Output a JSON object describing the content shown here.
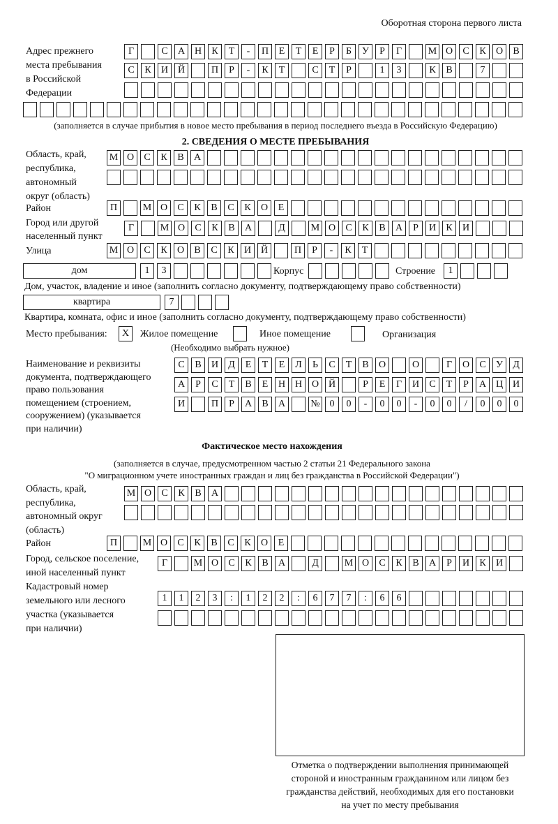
{
  "header": "Оборотная сторона первого листа",
  "prev_address": {
    "label": [
      "Адрес прежнего",
      "места пребывания",
      "в Российской",
      "Федерации"
    ],
    "rows": [
      [
        "Г",
        "",
        "С",
        "А",
        "Н",
        "К",
        "Т",
        "-",
        "П",
        "Е",
        "Т",
        "Е",
        "Р",
        "Б",
        "У",
        "Р",
        "Г",
        "",
        "М",
        "О",
        "С",
        "К",
        "О",
        "В"
      ],
      [
        "С",
        "К",
        "И",
        "Й",
        "",
        "П",
        "Р",
        "-",
        "К",
        "Т",
        "",
        "С",
        "Т",
        "Р",
        "",
        "1",
        "3",
        "",
        "К",
        "В",
        "",
        "7",
        "",
        ""
      ],
      [
        "",
        "",
        "",
        "",
        "",
        "",
        "",
        "",
        "",
        "",
        "",
        "",
        "",
        "",
        "",
        "",
        "",
        "",
        "",
        "",
        "",
        "",
        "",
        ""
      ],
      [
        "",
        "",
        "",
        "",
        "",
        "",
        "",
        "",
        "",
        "",
        "",
        "",
        "",
        "",
        "",
        "",
        "",
        "",
        "",
        "",
        "",
        "",
        "",
        "",
        "",
        "",
        "",
        "",
        "",
        ""
      ]
    ],
    "note": "(заполняется в случае прибытия в новое место пребывания в период последнего въезда в Российскую Федерацию)"
  },
  "section2": {
    "title": "2. СВЕДЕНИЯ О МЕСТЕ ПРЕБЫВАНИЯ",
    "region_label": [
      "Область, край,",
      "республика,",
      "автономный",
      "округ (область)"
    ],
    "region_rows": [
      [
        "М",
        "О",
        "С",
        "К",
        "В",
        "А",
        "",
        "",
        "",
        "",
        "",
        "",
        "",
        "",
        "",
        "",
        "",
        "",
        "",
        "",
        "",
        "",
        "",
        "",
        ""
      ],
      [
        "",
        "",
        "",
        "",
        "",
        "",
        "",
        "",
        "",
        "",
        "",
        "",
        "",
        "",
        "",
        "",
        "",
        "",
        "",
        "",
        "",
        "",
        "",
        "",
        ""
      ]
    ],
    "district_label": "Район",
    "district": [
      "П",
      "",
      "М",
      "О",
      "С",
      "К",
      "В",
      "С",
      "К",
      "О",
      "Е",
      "",
      "",
      "",
      "",
      "",
      "",
      "",
      "",
      "",
      "",
      "",
      "",
      "",
      ""
    ],
    "city_label": [
      "Город или другой",
      "населенный пункт"
    ],
    "city": [
      "Г",
      "",
      "М",
      "О",
      "С",
      "К",
      "В",
      "А",
      "",
      "Д",
      "",
      "М",
      "О",
      "С",
      "К",
      "В",
      "А",
      "Р",
      "И",
      "К",
      "И",
      "",
      "",
      ""
    ],
    "street_label": "Улица",
    "street": [
      "М",
      "О",
      "С",
      "К",
      "О",
      "В",
      "С",
      "К",
      "И",
      "Й",
      "",
      "П",
      "Р",
      "-",
      "К",
      "Т",
      "",
      "",
      "",
      "",
      "",
      "",
      "",
      "",
      ""
    ],
    "house_type": "дом",
    "house": [
      "1",
      "3",
      "",
      "",
      "",
      "",
      "",
      ""
    ],
    "korpus_label": "Корпус",
    "korpus": [
      "",
      "",
      "",
      "",
      ""
    ],
    "stroenie_label": "Строение",
    "stroenie": [
      "1",
      "",
      "",
      ""
    ],
    "house_note": "Дом, участок, владение и иное (заполнить согласно документу, подтверждающему право собственности)",
    "flat_type": "квартира",
    "flat": [
      "7",
      "",
      "",
      ""
    ],
    "flat_note": "Квартира, комната, офис и иное (заполнить согласно документу, подтверждающему право собственности)",
    "stay_label": "Место пребывания:",
    "stay_options": [
      {
        "label": "Жилое помещение",
        "mark": "X"
      },
      {
        "label": "Иное помещение",
        "mark": ""
      },
      {
        "label": "Организация",
        "mark": ""
      }
    ],
    "stay_note": "(Необходимо выбрать нужное)",
    "doc_label": [
      "Наименование и реквизиты",
      "документа, подтверждающего",
      "право пользования",
      "помещением (строением,",
      "сооружением) (указывается",
      "при наличии)"
    ],
    "doc_rows": [
      [
        "С",
        "В",
        "И",
        "Д",
        "Е",
        "Т",
        "Е",
        "Л",
        "Ь",
        "С",
        "Т",
        "В",
        "О",
        "",
        "О",
        "",
        "Г",
        "О",
        "С",
        "У",
        "Д"
      ],
      [
        "А",
        "Р",
        "С",
        "Т",
        "В",
        "Е",
        "Н",
        "Н",
        "О",
        "Й",
        "",
        "Р",
        "Е",
        "Г",
        "И",
        "С",
        "Т",
        "Р",
        "А",
        "Ц",
        "И"
      ],
      [
        "И",
        "",
        "П",
        "Р",
        "А",
        "В",
        "А",
        "",
        "№",
        "0",
        "0",
        "-",
        "0",
        "0",
        "-",
        "0",
        "0",
        "/",
        "0",
        "0",
        "0"
      ]
    ]
  },
  "actual": {
    "title": "Фактическое место нахождения",
    "note": [
      "(заполняется в случае, предусмотренном частью 2 статьи 21 Федерального закона",
      "\"О миграционном учете иностранных граждан и лиц без гражданства в Российской Федерации\")"
    ],
    "region_label": [
      "Область, край,",
      "республика,",
      "автономный округ",
      "(область)"
    ],
    "region_rows": [
      [
        "М",
        "О",
        "С",
        "К",
        "В",
        "А",
        "",
        "",
        "",
        "",
        "",
        "",
        "",
        "",
        "",
        "",
        "",
        "",
        "",
        "",
        "",
        "",
        "",
        ""
      ],
      [
        "",
        "",
        "",
        "",
        "",
        "",
        "",
        "",
        "",
        "",
        "",
        "",
        "",
        "",
        "",
        "",
        "",
        "",
        "",
        "",
        "",
        "",
        "",
        ""
      ]
    ],
    "district_label": "Район",
    "district": [
      "П",
      "",
      "М",
      "О",
      "С",
      "К",
      "В",
      "С",
      "К",
      "О",
      "Е",
      "",
      "",
      "",
      "",
      "",
      "",
      "",
      "",
      "",
      "",
      "",
      "",
      "",
      ""
    ],
    "city_label": [
      "Город, сельское поселение,",
      "иной населенный пункт"
    ],
    "city": [
      "Г",
      "",
      "М",
      "О",
      "С",
      "К",
      "В",
      "А",
      "",
      "Д",
      "",
      "М",
      "О",
      "С",
      "К",
      "В",
      "А",
      "Р",
      "И",
      "К",
      "И",
      ""
    ],
    "cadastre_label": [
      "Кадастровый номер",
      "земельного или лесного",
      "участка (указывается",
      "при наличии)"
    ],
    "cadastre_rows": [
      [
        "1",
        "1",
        "2",
        "3",
        ":",
        "1",
        "2",
        "2",
        ":",
        "6",
        "7",
        "7",
        ":",
        "6",
        "6",
        "",
        "",
        "",
        "",
        "",
        "",
        ""
      ],
      [
        "",
        "",
        "",
        "",
        "",
        "",
        "",
        "",
        "",
        "",
        "",
        "",
        "",
        "",
        "",
        "",
        "",
        "",
        "",
        "",
        "",
        ""
      ]
    ]
  },
  "confirmation": [
    "Отметка о подтверждении выполнения принимающей",
    "стороной и иностранным гражданином или лицом без",
    "гражданства действий, необходимых для его постановки",
    "на учет по месту пребывания"
  ]
}
